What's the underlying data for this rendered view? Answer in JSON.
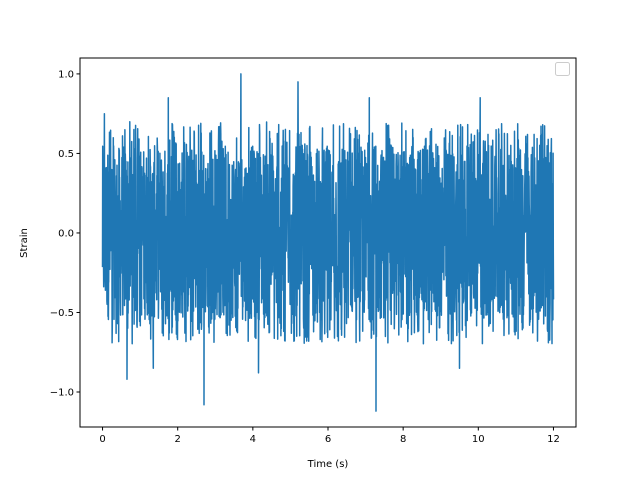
{
  "chart_data": {
    "type": "line",
    "title": "",
    "xlabel": "Time (s)",
    "ylabel": "Strain",
    "xlim": [
      -0.6,
      12.6
    ],
    "ylim": [
      -1.22,
      1.1
    ],
    "x_ticks": [
      0,
      2,
      4,
      6,
      8,
      10,
      12
    ],
    "x_tick_labels": [
      "0",
      "2",
      "4",
      "6",
      "8",
      "10",
      "12"
    ],
    "y_ticks": [
      -1.0,
      -0.5,
      0.0,
      0.5,
      1.0
    ],
    "y_tick_labels": [
      "−1.0",
      "−0.5",
      "0.0",
      "0.5",
      "1.0"
    ],
    "grid": false,
    "legend": {
      "location": "upper right",
      "entries": []
    },
    "series": [
      {
        "color": "#1f77b4",
        "x_start": 0,
        "x_end": 12,
        "typical_range": [
          -0.55,
          0.55
        ],
        "notable_peaks": [
          {
            "x": 0.05,
            "y": 0.75
          },
          {
            "x": 1.75,
            "y": 0.85
          },
          {
            "x": 3.68,
            "y": 1.0
          },
          {
            "x": 5.2,
            "y": 0.95
          },
          {
            "x": 7.1,
            "y": 0.85
          },
          {
            "x": 10.05,
            "y": 0.85
          },
          {
            "x": 2.7,
            "y": -1.08
          },
          {
            "x": 0.65,
            "y": -0.92
          },
          {
            "x": 1.35,
            "y": -0.85
          },
          {
            "x": 4.15,
            "y": -0.88
          },
          {
            "x": 7.28,
            "y": -1.12
          },
          {
            "x": 9.5,
            "y": -0.85
          }
        ]
      }
    ]
  }
}
